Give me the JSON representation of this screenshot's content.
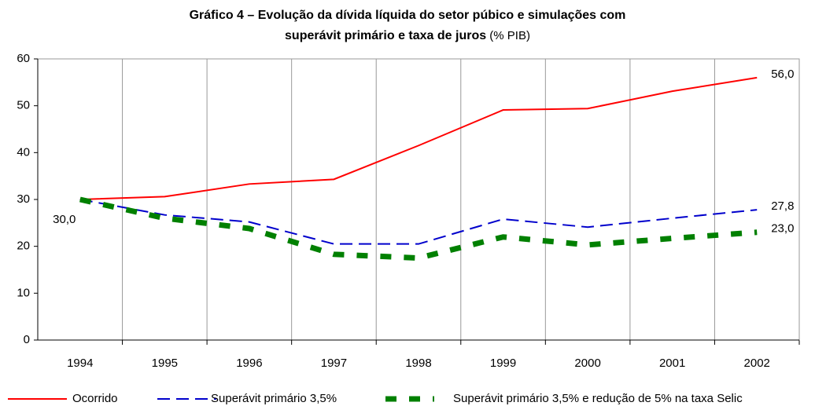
{
  "chart_data": {
    "type": "line",
    "title": [
      "Gráfico 4 – Evolução da dívida líquida do setor púbico e simulações com",
      "superávit primário e taxa de juros"
    ],
    "title_unit": "(% PIB)",
    "categories": [
      "1994",
      "1995",
      "1996",
      "1997",
      "1998",
      "1999",
      "2000",
      "2001",
      "2002"
    ],
    "series": [
      {
        "name": "Ocorrido",
        "color": "#ff0000",
        "style": "solid",
        "values": [
          30.0,
          30.6,
          33.3,
          34.3,
          41.5,
          49.1,
          49.4,
          53.1,
          56.0
        ],
        "value_labels": [
          "30,0",
          null,
          null,
          null,
          null,
          null,
          null,
          null,
          "56,0"
        ]
      },
      {
        "name": "Superávit primário 3,5%",
        "color": "#0000cc",
        "style": "dashed",
        "values": [
          30.0,
          26.7,
          25.2,
          20.5,
          20.5,
          25.8,
          24.1,
          26.0,
          27.8
        ],
        "value_labels": [
          null,
          null,
          null,
          null,
          null,
          null,
          null,
          null,
          "27,8"
        ]
      },
      {
        "name": "Superávit primário 3,5% e redução de 5% na taxa Selic",
        "color": "#008000",
        "style": "thick-dashed",
        "values": [
          30.0,
          26.0,
          23.8,
          18.3,
          17.5,
          22.0,
          20.3,
          21.7,
          23.0
        ],
        "value_labels": [
          null,
          null,
          null,
          null,
          null,
          null,
          null,
          null,
          "23,0"
        ]
      }
    ],
    "ylim": [
      0,
      60
    ],
    "yticks": [
      0,
      10,
      20,
      30,
      40,
      50,
      60
    ],
    "legend": "bottom"
  }
}
